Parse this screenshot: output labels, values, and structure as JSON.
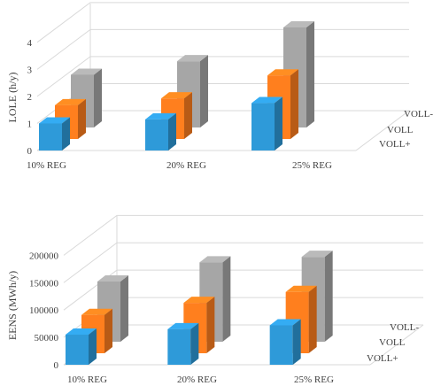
{
  "chart_data": [
    {
      "type": "bar",
      "categories": [
        "10% REG",
        "20% REG",
        "25% REG"
      ],
      "ylabel": "LOLE  (h/y)",
      "ylim": [
        0,
        5
      ],
      "ticks": [
        "0",
        "1",
        "2",
        "3",
        "4"
      ],
      "series": [
        {
          "name": "VOLL+",
          "values": [
            1.0,
            1.15,
            1.75
          ]
        },
        {
          "name": "VOLL",
          "values": [
            1.25,
            1.5,
            2.35
          ]
        },
        {
          "name": "VOLL-",
          "values": [
            1.95,
            2.45,
            3.7
          ]
        }
      ],
      "colors": [
        "#2e9ad9",
        "#ff7f1e",
        "#a6a6a6"
      ],
      "legend": "right-depth-axis",
      "grid": true
    },
    {
      "type": "bar",
      "categories": [
        "10% REG",
        "20% REG",
        "25% REG"
      ],
      "ylabel": "EENS  (MWh/y)",
      "ylim": [
        0,
        250000
      ],
      "ticks": [
        "0",
        "50000",
        "100000",
        "150000",
        "200000"
      ],
      "series": [
        {
          "name": "VOLL+",
          "values": [
            55000,
            65000,
            72000
          ]
        },
        {
          "name": "VOLL",
          "values": [
            70000,
            92000,
            112000
          ]
        },
        {
          "name": "VOLL-",
          "values": [
            110000,
            145000,
            155000
          ]
        }
      ],
      "colors": [
        "#2e9ad9",
        "#ff7f1e",
        "#a6a6a6"
      ],
      "legend": "right-depth-axis",
      "grid": true
    }
  ]
}
